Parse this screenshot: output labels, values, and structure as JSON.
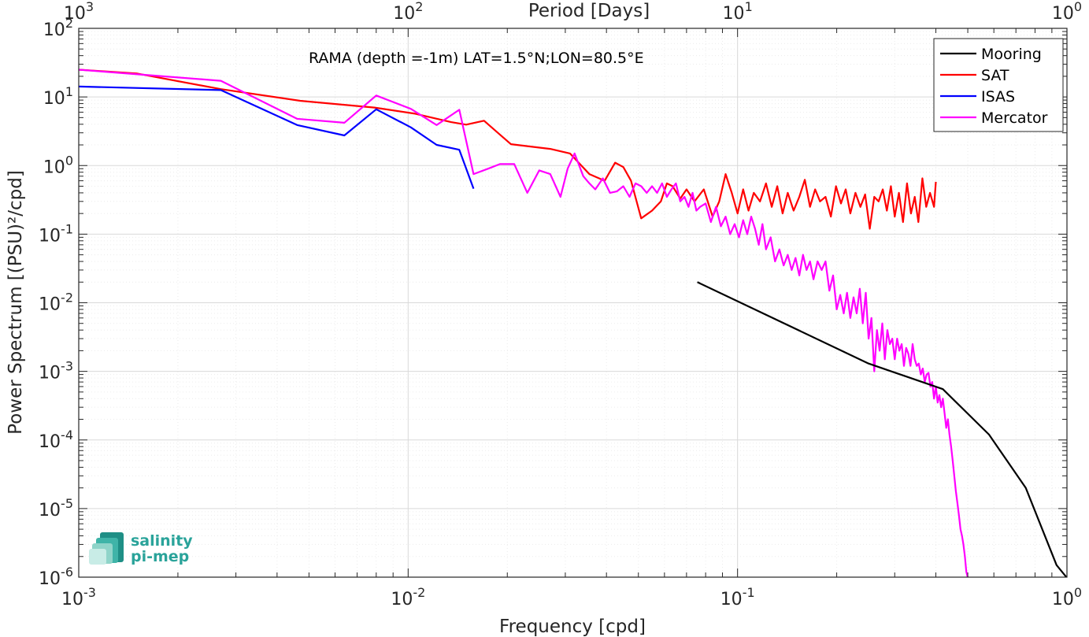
{
  "chart_data": {
    "type": "line",
    "title": "",
    "annotation": "RAMA (depth =-1m) LAT=1.5°N;LON=80.5°E",
    "xlabel": "Frequency [cpd]",
    "ylabel": "Power Spectrum [(PSU)²/cpd]",
    "top_xlabel": "Period [Days]",
    "xscale": "log",
    "yscale": "log",
    "xlim": [
      0.001,
      1
    ],
    "ylim": [
      1e-06,
      100
    ],
    "grid": true,
    "legend_position": "top-right",
    "x_ticks": [
      {
        "value": 0.001,
        "base": "10",
        "exp": "-3"
      },
      {
        "value": 0.01,
        "base": "10",
        "exp": "-2"
      },
      {
        "value": 0.1,
        "base": "10",
        "exp": "-1"
      },
      {
        "value": 1,
        "base": "10",
        "exp": "0"
      }
    ],
    "top_x_ticks": [
      {
        "freq": 0.001,
        "base": "10",
        "exp": "3"
      },
      {
        "freq": 0.01,
        "base": "10",
        "exp": "2"
      },
      {
        "freq": 0.1,
        "base": "10",
        "exp": "1"
      },
      {
        "freq": 1,
        "base": "10",
        "exp": "0"
      }
    ],
    "y_ticks": [
      {
        "value": 100,
        "base": "10",
        "exp": "2"
      },
      {
        "value": 10,
        "base": "10",
        "exp": "1"
      },
      {
        "value": 1,
        "base": "10",
        "exp": "0"
      },
      {
        "value": 0.1,
        "base": "10",
        "exp": "-1"
      },
      {
        "value": 0.01,
        "base": "10",
        "exp": "-2"
      },
      {
        "value": 0.001,
        "base": "10",
        "exp": "-3"
      },
      {
        "value": 0.0001,
        "base": "10",
        "exp": "-4"
      },
      {
        "value": 1e-05,
        "base": "10",
        "exp": "-5"
      },
      {
        "value": 1e-06,
        "base": "10",
        "exp": "-6"
      }
    ],
    "series": [
      {
        "name": "Mooring",
        "color": "#000000",
        "x": [
          0.0755,
          0.25,
          0.42,
          0.58,
          0.75,
          0.93,
          1.0
        ],
        "y": [
          0.02,
          0.0013,
          0.00055,
          0.00012,
          2e-05,
          1.5e-06,
          9.8e-07
        ]
      },
      {
        "name": "SAT",
        "color": "#ff0000",
        "x": [
          0.001,
          0.0015,
          0.0027,
          0.0047,
          0.0079,
          0.0105,
          0.0135,
          0.015,
          0.017,
          0.0205,
          0.027,
          0.031,
          0.0355,
          0.0395,
          0.0425,
          0.045,
          0.0475,
          0.051,
          0.055,
          0.0585,
          0.061,
          0.0635,
          0.067,
          0.07,
          0.074,
          0.079,
          0.084,
          0.088,
          0.092,
          0.096,
          0.1,
          0.104,
          0.108,
          0.112,
          0.117,
          0.122,
          0.127,
          0.132,
          0.137,
          0.142,
          0.148,
          0.154,
          0.16,
          0.166,
          0.172,
          0.178,
          0.185,
          0.192,
          0.199,
          0.206,
          0.213,
          0.22,
          0.228,
          0.236,
          0.244,
          0.252,
          0.26,
          0.268,
          0.276,
          0.284,
          0.292,
          0.3,
          0.309,
          0.318,
          0.327,
          0.336,
          0.345,
          0.354,
          0.364,
          0.374,
          0.384,
          0.395,
          0.4
        ],
        "y": [
          25,
          22,
          13,
          8.8,
          7,
          5.7,
          4.3,
          3.95,
          4.5,
          2.05,
          1.75,
          1.5,
          0.75,
          0.6,
          1.1,
          0.95,
          0.6,
          0.17,
          0.22,
          0.3,
          0.55,
          0.5,
          0.33,
          0.45,
          0.3,
          0.45,
          0.18,
          0.3,
          0.75,
          0.4,
          0.2,
          0.45,
          0.22,
          0.4,
          0.3,
          0.55,
          0.25,
          0.5,
          0.2,
          0.4,
          0.22,
          0.35,
          0.62,
          0.25,
          0.45,
          0.3,
          0.35,
          0.18,
          0.5,
          0.28,
          0.45,
          0.2,
          0.4,
          0.25,
          0.38,
          0.12,
          0.35,
          0.3,
          0.45,
          0.22,
          0.5,
          0.18,
          0.4,
          0.15,
          0.55,
          0.2,
          0.35,
          0.15,
          0.65,
          0.25,
          0.4,
          0.25,
          0.58
        ]
      },
      {
        "name": "ISAS",
        "color": "#0000ff",
        "x": [
          0.001,
          0.0027,
          0.0046,
          0.0064,
          0.008,
          0.0102,
          0.0122,
          0.0143,
          0.0158
        ],
        "y": [
          14.2,
          12.6,
          3.9,
          2.75,
          6.6,
          3.6,
          2.0,
          1.7,
          0.46
        ]
      },
      {
        "name": "Mercator",
        "color": "#ff00ff",
        "x": [
          0.001,
          0.0027,
          0.0046,
          0.0064,
          0.008,
          0.0102,
          0.0122,
          0.0143,
          0.0158,
          0.0175,
          0.019,
          0.021,
          0.023,
          0.025,
          0.027,
          0.029,
          0.0305,
          0.032,
          0.034,
          0.0355,
          0.037,
          0.039,
          0.041,
          0.043,
          0.045,
          0.047,
          0.049,
          0.051,
          0.053,
          0.055,
          0.057,
          0.059,
          0.061,
          0.063,
          0.065,
          0.067,
          0.069,
          0.071,
          0.073,
          0.075,
          0.077,
          0.08,
          0.083,
          0.086,
          0.089,
          0.092,
          0.095,
          0.098,
          0.101,
          0.104,
          0.107,
          0.11,
          0.113,
          0.116,
          0.119,
          0.122,
          0.126,
          0.13,
          0.134,
          0.138,
          0.142,
          0.146,
          0.15,
          0.154,
          0.158,
          0.162,
          0.166,
          0.17,
          0.175,
          0.18,
          0.185,
          0.19,
          0.195,
          0.2,
          0.205,
          0.21,
          0.215,
          0.22,
          0.225,
          0.23,
          0.235,
          0.24,
          0.245,
          0.25,
          0.255,
          0.26,
          0.265,
          0.27,
          0.275,
          0.28,
          0.285,
          0.29,
          0.295,
          0.3,
          0.305,
          0.31,
          0.315,
          0.32,
          0.325,
          0.33,
          0.335,
          0.34,
          0.345,
          0.35,
          0.355,
          0.36,
          0.365,
          0.37,
          0.375,
          0.38,
          0.385,
          0.39,
          0.395,
          0.4,
          0.405,
          0.41,
          0.415,
          0.42,
          0.425,
          0.43,
          0.435,
          0.44,
          0.445,
          0.45,
          0.455,
          0.46,
          0.465,
          0.47,
          0.475,
          0.48,
          0.485,
          0.49,
          0.495,
          0.5
        ],
        "y": [
          25,
          17.2,
          4.8,
          4.2,
          10.5,
          6.7,
          3.9,
          6.5,
          0.75,
          0.9,
          1.05,
          1.05,
          0.4,
          0.85,
          0.75,
          0.35,
          0.9,
          1.5,
          0.7,
          0.55,
          0.45,
          0.65,
          0.4,
          0.42,
          0.5,
          0.35,
          0.55,
          0.5,
          0.4,
          0.5,
          0.4,
          0.55,
          0.35,
          0.45,
          0.55,
          0.3,
          0.35,
          0.25,
          0.4,
          0.22,
          0.25,
          0.28,
          0.15,
          0.25,
          0.13,
          0.18,
          0.1,
          0.14,
          0.09,
          0.16,
          0.1,
          0.18,
          0.12,
          0.07,
          0.14,
          0.06,
          0.09,
          0.04,
          0.06,
          0.035,
          0.05,
          0.03,
          0.045,
          0.025,
          0.05,
          0.03,
          0.04,
          0.022,
          0.04,
          0.03,
          0.04,
          0.015,
          0.025,
          0.008,
          0.013,
          0.007,
          0.014,
          0.006,
          0.012,
          0.007,
          0.016,
          0.005,
          0.014,
          0.003,
          0.006,
          0.001,
          0.004,
          0.002,
          0.005,
          0.0015,
          0.004,
          0.0025,
          0.003,
          0.0015,
          0.003,
          0.002,
          0.0025,
          0.0012,
          0.0022,
          0.0018,
          0.0012,
          0.0025,
          0.0015,
          0.0012,
          0.0013,
          0.0009,
          0.0011,
          0.0007,
          0.0009,
          0.00095,
          0.0006,
          0.0007,
          0.0004,
          0.0006,
          0.00035,
          0.00045,
          0.0003,
          0.0004,
          0.00025,
          0.00015,
          0.0002,
          0.00012,
          8e-05,
          5e-05,
          3e-05,
          1.8e-05,
          1.2e-05,
          8e-06,
          5e-06,
          4e-06,
          3e-06,
          2e-06,
          1.2e-06,
          9.8e-07
        ]
      }
    ]
  },
  "logo": {
    "line1": "salinity",
    "line2": "pi-mep"
  }
}
